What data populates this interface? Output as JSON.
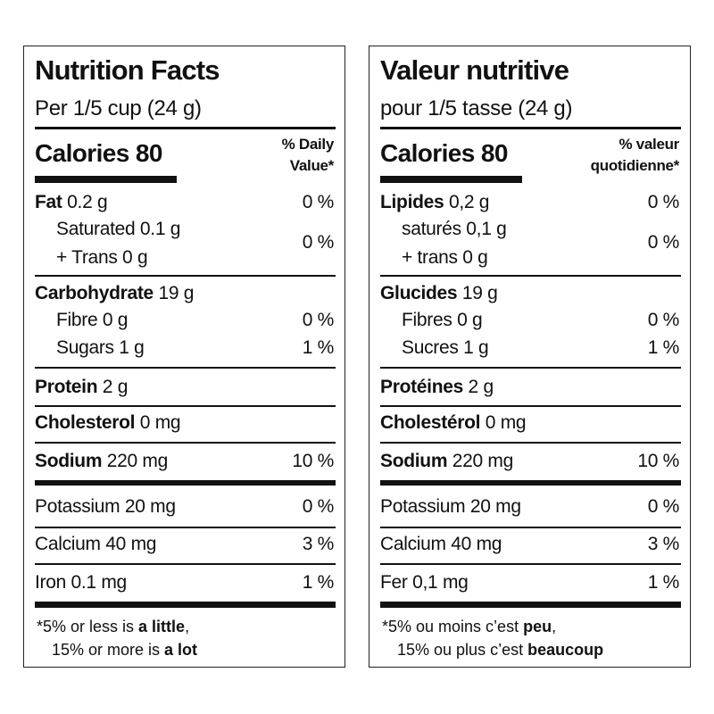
{
  "panels": [
    {
      "title": "Nutrition Facts",
      "serving": "Per 1/5 cup (24 g)",
      "calories": "Calories 80",
      "dv_header": [
        "% Daily",
        "Value*"
      ],
      "rows": [
        {
          "bold": "Fat",
          "text": "0.2 g",
          "dv": "0 %"
        },
        {
          "lines": [
            "Saturated 0.1 g",
            "+ Trans 0 g"
          ],
          "dv": "0 %"
        },
        {
          "bold": "Carbohydrate",
          "text": "19 g"
        },
        {
          "text": "Fibre 0 g",
          "dv": "0 %"
        },
        {
          "text": "Sugars 1 g",
          "dv": "1 %"
        },
        {
          "bold": "Protein",
          "text": "2 g"
        },
        {
          "bold": "Cholesterol",
          "text": "0 mg"
        },
        {
          "bold": "Sodium",
          "text": "220 mg",
          "dv": "10 %"
        },
        {
          "text": "Potassium 20 mg",
          "dv": "0 %"
        },
        {
          "text": "Calcium 40 mg",
          "dv": "3 %"
        },
        {
          "text": "Iron 0.1 mg",
          "dv": "1 %"
        }
      ],
      "footnote": [
        [
          {
            "text": "*5% or less is "
          },
          {
            "text": "a little",
            "bold": true
          },
          {
            "text": ","
          }
        ],
        [
          {
            "text": "15% or more is "
          },
          {
            "text": "a lot",
            "bold": true
          }
        ]
      ]
    },
    {
      "title": "Valeur nutritive",
      "serving": "pour 1/5 tasse (24 g)",
      "calories": "Calories 80",
      "dv_header": [
        "% valeur",
        "quotidienne*"
      ],
      "rows": [
        {
          "bold": "Lipides",
          "text": "0,2 g",
          "dv": "0 %"
        },
        {
          "lines": [
            "saturés 0,1 g",
            "+ trans 0 g"
          ],
          "dv": "0 %"
        },
        {
          "bold": "Glucides",
          "text": "19 g"
        },
        {
          "text": "Fibres 0 g",
          "dv": "0 %"
        },
        {
          "text": "Sucres 1 g",
          "dv": "1 %"
        },
        {
          "bold": "Protéines",
          "text": "2 g"
        },
        {
          "bold": "Cholestérol",
          "text": "0 mg"
        },
        {
          "bold": "Sodium",
          "text": "220 mg",
          "dv": "10 %"
        },
        {
          "text": "Potassium 20 mg",
          "dv": "0 %"
        },
        {
          "text": "Calcium 40 mg",
          "dv": "3 %"
        },
        {
          "text": "Fer 0,1 mg",
          "dv": "1 %"
        }
      ],
      "footnote": [
        [
          {
            "text": "*5% ou moins c’est "
          },
          {
            "text": "peu",
            "bold": true
          },
          {
            "text": ","
          }
        ],
        [
          {
            "text": "15% ou plus c’est "
          },
          {
            "text": "beaucoup",
            "bold": true
          }
        ]
      ]
    }
  ]
}
